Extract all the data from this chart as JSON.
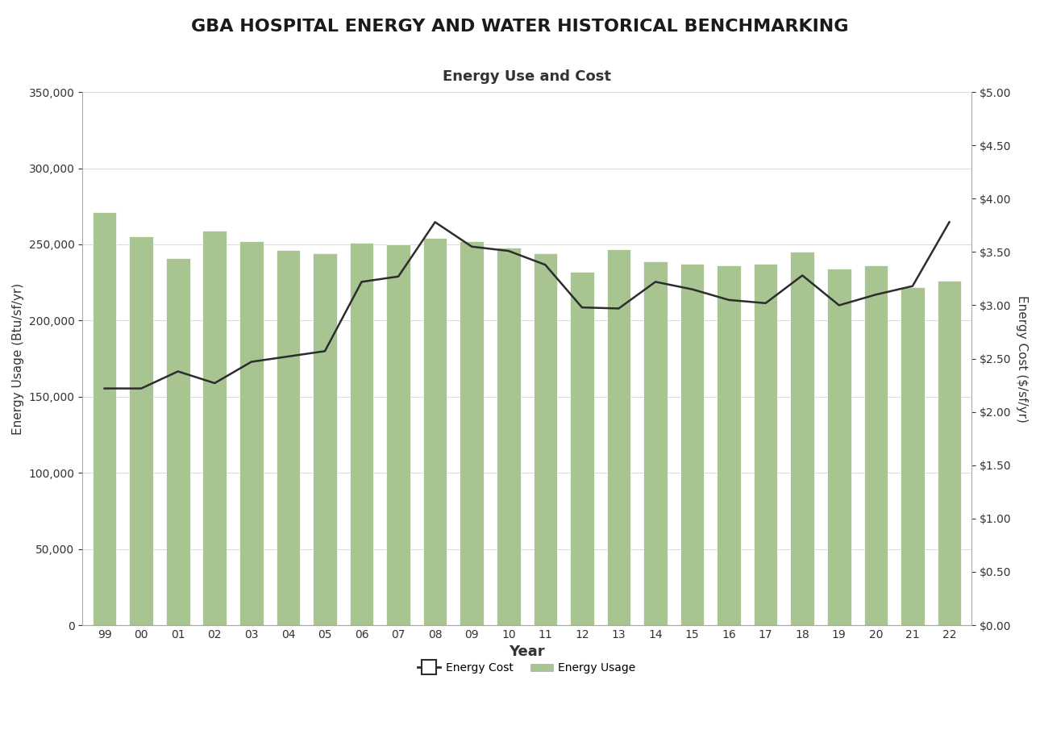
{
  "title": "GBA HOSPITAL ENERGY AND WATER HISTORICAL BENCHMARKING",
  "subtitle": "Energy Use and Cost",
  "years": [
    "99",
    "00",
    "01",
    "02",
    "03",
    "04",
    "05",
    "06",
    "07",
    "08",
    "09",
    "10",
    "11",
    "12",
    "13",
    "14",
    "15",
    "16",
    "17",
    "18",
    "19",
    "20",
    "21",
    "22"
  ],
  "energy_usage": [
    271000,
    255000,
    241000,
    259000,
    252000,
    246000,
    244000,
    251000,
    250000,
    254000,
    252000,
    248000,
    244000,
    232000,
    247000,
    239000,
    237000,
    236000,
    237000,
    245000,
    234000,
    236000,
    222000,
    226000
  ],
  "energy_cost": [
    2.22,
    2.22,
    2.38,
    2.27,
    2.47,
    2.52,
    2.57,
    3.22,
    3.27,
    3.78,
    3.55,
    3.51,
    3.38,
    2.98,
    2.97,
    3.22,
    3.15,
    3.05,
    3.02,
    3.28,
    3.0,
    3.1,
    3.18,
    3.78
  ],
  "bar_color": "#a8c490",
  "line_color": "#2d2d2d",
  "background_color": "#ffffff",
  "grid_color": "#cccccc",
  "ylabel_left": "Energy Usage (Btu/sf/yr)",
  "ylabel_right": "Energy Cost ($/sf/yr)",
  "xlabel": "Year",
  "ylim_left": [
    0,
    350000
  ],
  "ylim_right": [
    0.0,
    5.0
  ],
  "yticks_left": [
    0,
    50000,
    100000,
    150000,
    200000,
    250000,
    300000,
    350000
  ],
  "yticks_right": [
    0.0,
    0.5,
    1.0,
    1.5,
    2.0,
    2.5,
    3.0,
    3.5,
    4.0,
    4.5,
    5.0
  ],
  "title_fontsize": 16,
  "subtitle_fontsize": 13,
  "axis_label_fontsize": 11,
  "tick_fontsize": 10,
  "legend_fontsize": 10
}
